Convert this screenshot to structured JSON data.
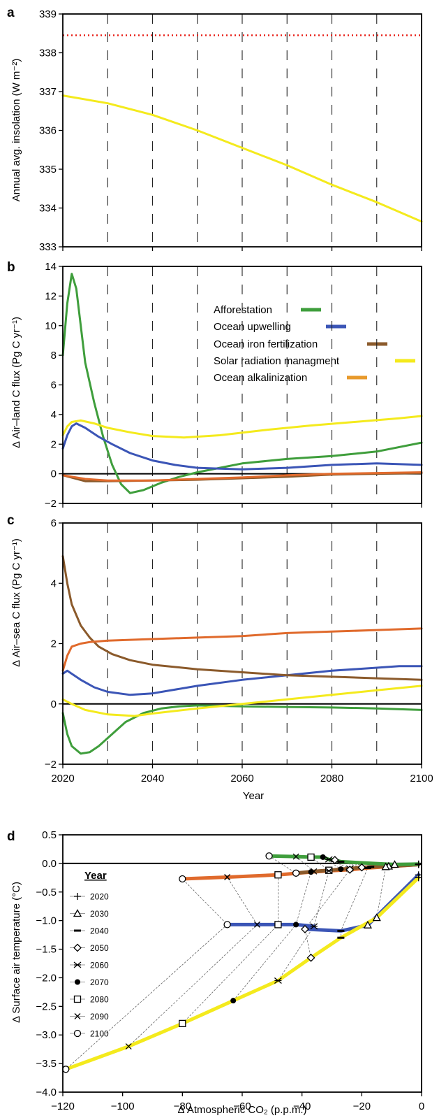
{
  "chart_data": [
    {
      "panel": "a",
      "type": "line",
      "ylabel": "Annual avg. insolation (W m⁻²)",
      "xlim": [
        2020,
        2100
      ],
      "ylim": [
        333,
        339
      ],
      "yticks": [
        333,
        334,
        335,
        336,
        337,
        338,
        339
      ],
      "dashed_vertical_gridlines": true,
      "series": [
        {
          "key": "reference",
          "color": "#e8221b",
          "style": "dotted",
          "x": [
            2020,
            2100
          ],
          "y": [
            338.45,
            338.45
          ]
        },
        {
          "key": "srm",
          "color": "#f4ea1d",
          "x": [
            2020,
            2030,
            2040,
            2050,
            2060,
            2070,
            2080,
            2090,
            2100
          ],
          "y": [
            336.9,
            336.7,
            336.4,
            336.0,
            335.55,
            335.1,
            334.6,
            334.15,
            333.65
          ]
        }
      ]
    },
    {
      "panel": "b",
      "type": "line",
      "ylabel": "Δ Air–land C flux (Pg C yr⁻¹)",
      "xlim": [
        2020,
        2100
      ],
      "ylim": [
        -2,
        14
      ],
      "yticks": [
        -2,
        0,
        2,
        4,
        6,
        8,
        10,
        12,
        14
      ],
      "legend_position": "upper-right",
      "series": [
        {
          "name": "Afforestation",
          "color": "#3f9e3c",
          "x": [
            2020,
            2021,
            2022,
            2023,
            2024,
            2025,
            2027,
            2029,
            2031,
            2033,
            2035,
            2038,
            2042,
            2046,
            2050,
            2055,
            2060,
            2070,
            2080,
            2090,
            2100
          ],
          "y": [
            8.0,
            11.5,
            13.5,
            12.5,
            10.0,
            7.5,
            4.8,
            2.5,
            0.6,
            -0.7,
            -1.3,
            -1.1,
            -0.6,
            -0.2,
            0.1,
            0.4,
            0.7,
            1.0,
            1.2,
            1.5,
            2.1
          ]
        },
        {
          "name": "Ocean upwelling",
          "color": "#3b55b6",
          "x": [
            2020,
            2021,
            2022,
            2023,
            2025,
            2028,
            2031,
            2035,
            2040,
            2045,
            2050,
            2055,
            2060,
            2070,
            2080,
            2090,
            2100
          ],
          "y": [
            1.7,
            2.6,
            3.2,
            3.4,
            3.1,
            2.5,
            2.0,
            1.4,
            0.9,
            0.6,
            0.4,
            0.35,
            0.3,
            0.4,
            0.6,
            0.7,
            0.6
          ]
        },
        {
          "name": "Ocean iron fertilization",
          "color": "#8b5a2b",
          "x": [
            2020,
            2025,
            2030,
            2040,
            2050,
            2060,
            2070,
            2080,
            2090,
            2100
          ],
          "y": [
            -0.1,
            -0.5,
            -0.5,
            -0.45,
            -0.4,
            -0.3,
            -0.2,
            -0.05,
            0.0,
            0.05
          ]
        },
        {
          "name": "Solar radiation managment",
          "color": "#f4ea1d",
          "x": [
            2020,
            2021,
            2022,
            2024,
            2027,
            2030,
            2035,
            2040,
            2047,
            2055,
            2065,
            2075,
            2085,
            2095,
            2100
          ],
          "y": [
            2.6,
            3.2,
            3.5,
            3.6,
            3.4,
            3.1,
            2.8,
            2.55,
            2.45,
            2.6,
            2.95,
            3.25,
            3.5,
            3.75,
            3.9
          ]
        },
        {
          "name": "Ocean alkalinization",
          "color": "#e06a2c",
          "x": [
            2020,
            2025,
            2030,
            2040,
            2050,
            2060,
            2070,
            2080,
            2090,
            2100
          ],
          "y": [
            -0.1,
            -0.35,
            -0.45,
            -0.45,
            -0.35,
            -0.25,
            -0.1,
            0.0,
            0.05,
            0.1
          ]
        }
      ]
    },
    {
      "panel": "c",
      "type": "line",
      "ylabel": "Δ Air–sea C flux (Pg C yr⁻¹)",
      "xlabel": "Year",
      "xlim": [
        2020,
        2100
      ],
      "xticks": [
        2020,
        2040,
        2060,
        2080,
        2100
      ],
      "ylim": [
        -2,
        6
      ],
      "yticks": [
        -2,
        0,
        2,
        4,
        6
      ],
      "series": [
        {
          "name": "Afforestation",
          "color": "#3f9e3c",
          "x": [
            2020,
            2021,
            2022,
            2024,
            2026,
            2028,
            2031,
            2034,
            2038,
            2042,
            2046,
            2050,
            2060,
            2070,
            2080,
            2090,
            2100
          ],
          "y": [
            -0.3,
            -1.0,
            -1.4,
            -1.65,
            -1.6,
            -1.4,
            -1.0,
            -0.6,
            -0.3,
            -0.15,
            -0.08,
            -0.05,
            -0.08,
            -0.1,
            -0.12,
            -0.15,
            -0.2
          ]
        },
        {
          "name": "Ocean upwelling",
          "color": "#3b55b6",
          "x": [
            2020,
            2021,
            2022,
            2024,
            2027,
            2030,
            2035,
            2040,
            2050,
            2060,
            2070,
            2080,
            2090,
            2095,
            2100
          ],
          "y": [
            1.0,
            1.1,
            1.0,
            0.8,
            0.55,
            0.4,
            0.3,
            0.35,
            0.6,
            0.8,
            0.95,
            1.1,
            1.2,
            1.25,
            1.25
          ]
        },
        {
          "name": "Ocean iron fertilization",
          "color": "#8b5a2b",
          "x": [
            2020,
            2021,
            2022,
            2024,
            2026,
            2028,
            2031,
            2035,
            2040,
            2050,
            2060,
            2070,
            2080,
            2090,
            2100
          ],
          "y": [
            4.9,
            4.0,
            3.3,
            2.6,
            2.2,
            1.9,
            1.65,
            1.45,
            1.3,
            1.15,
            1.05,
            0.95,
            0.9,
            0.85,
            0.8
          ]
        },
        {
          "name": "Solar radiation managment",
          "color": "#f4ea1d",
          "x": [
            2020,
            2022,
            2025,
            2030,
            2036,
            2040,
            2050,
            2060,
            2070,
            2080,
            2090,
            2100
          ],
          "y": [
            0.15,
            0.0,
            -0.2,
            -0.35,
            -0.4,
            -0.32,
            -0.15,
            0.0,
            0.15,
            0.3,
            0.45,
            0.6
          ]
        },
        {
          "name": "Ocean alkalinization",
          "color": "#e06a2c",
          "x": [
            2020,
            2021,
            2022,
            2024,
            2026,
            2030,
            2040,
            2050,
            2060,
            2070,
            2080,
            2090,
            2100
          ],
          "y": [
            1.1,
            1.6,
            1.9,
            2.0,
            2.05,
            2.1,
            2.15,
            2.2,
            2.25,
            2.35,
            2.4,
            2.45,
            2.5
          ]
        }
      ]
    },
    {
      "panel": "d",
      "type": "scatter",
      "ylabel": "Δ Surface air temperature (°C)",
      "xlabel": "Δ Atmospheric CO₂ (p.p.m.)",
      "xlim": [
        -120,
        0
      ],
      "xticks": [
        -120,
        -100,
        -80,
        -60,
        -40,
        -20,
        0
      ],
      "ylim": [
        -4.0,
        0.5
      ],
      "yticks": [
        0.5,
        0.0,
        -0.5,
        -1.0,
        -1.5,
        -2.0,
        -2.5,
        -3.0,
        -3.5,
        -4.0
      ],
      "legend_title": "Year",
      "years": [
        "2020",
        "2030",
        "2040",
        "2050",
        "2060",
        "2070",
        "2080",
        "2090",
        "2100"
      ],
      "markers": [
        "plus",
        "triangle",
        "dash",
        "diamond",
        "star",
        "filled-circle",
        "square",
        "x",
        "open-circle"
      ],
      "series": [
        {
          "name": "Afforestation",
          "color": "#3f9e3c",
          "x": [
            -1,
            -9,
            -27,
            -29,
            -31,
            -33,
            -37,
            -42,
            -51
          ],
          "y": [
            -0.01,
            -0.02,
            0.03,
            0.06,
            0.07,
            0.11,
            0.11,
            0.12,
            0.13
          ]
        },
        {
          "name": "Ocean upwelling",
          "color": "#3b55b6",
          "x": [
            -1,
            -18,
            -27,
            -39,
            -36,
            -42,
            -48,
            -55,
            -65
          ],
          "y": [
            -0.2,
            -1.08,
            -1.18,
            -1.15,
            -1.1,
            -1.07,
            -1.07,
            -1.07,
            -1.07
          ]
        },
        {
          "name": "Ocean iron fertilization",
          "color": "#8b5a2b",
          "x": [
            -1,
            -11,
            -17,
            -20,
            -24,
            -27,
            -31,
            -36,
            -42
          ],
          "y": [
            -0.02,
            -0.05,
            -0.06,
            -0.07,
            -0.09,
            -0.1,
            -0.12,
            -0.14,
            -0.17
          ]
        },
        {
          "name": "Solar radiation managment",
          "color": "#f4ea1d",
          "x": [
            -1,
            -15,
            -27,
            -37,
            -48,
            -63,
            -80,
            -98,
            -119
          ],
          "y": [
            -0.25,
            -0.95,
            -1.3,
            -1.65,
            -2.05,
            -2.4,
            -2.8,
            -3.2,
            -3.6
          ]
        },
        {
          "name": "Ocean alkalinization",
          "color": "#e06a2c",
          "x": [
            -1,
            -12,
            -18,
            -24,
            -31,
            -37,
            -48,
            -65,
            -80
          ],
          "y": [
            -0.02,
            -0.06,
            -0.08,
            -0.11,
            -0.13,
            -0.15,
            -0.2,
            -0.24,
            -0.27
          ]
        }
      ]
    }
  ],
  "panel_letters": {
    "a": "a",
    "b": "b",
    "c": "c",
    "d": "d"
  },
  "legend_b": [
    "Afforestation",
    "Ocean upwelling",
    "Ocean iron fertilization",
    "Solar radiation managment",
    "Ocean alkalinization"
  ],
  "ylabel_a": "Annual avg. insolation (W m⁻²)",
  "ylabel_b": "Δ Air–land C flux (Pg C yr⁻¹)",
  "ylabel_c": "Δ Air–sea C flux (Pg C yr⁻¹)",
  "xlabel_c": "Year",
  "ylabel_d": "Δ Surface air temperature (°C)",
  "xlabel_d": "Δ Atmospheric CO₂ (p.p.m.)",
  "legend_d_title": "Year"
}
